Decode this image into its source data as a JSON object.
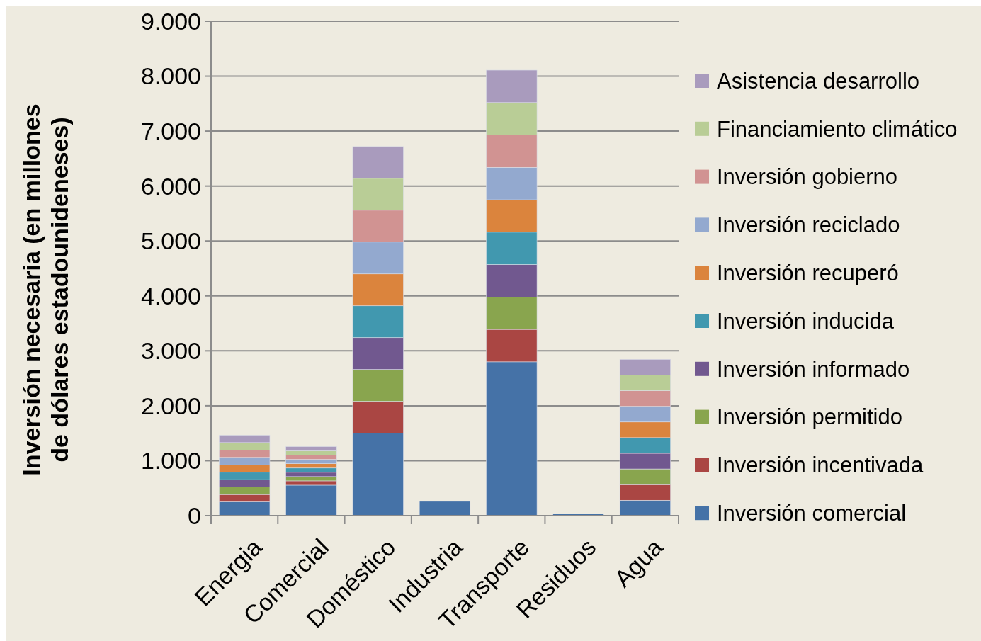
{
  "chart_data": {
    "type": "bar",
    "stacked": true,
    "ylabel": "Inversión necesaria (en millones de dólares estadounideneses)",
    "categories": [
      "Energia",
      "Comercial",
      "Doméstico",
      "Industria",
      "Transporte",
      "Residuos",
      "Agua"
    ],
    "series": [
      {
        "name": "Inversión comercial",
        "color": "#4572a7",
        "values": [
          250,
          555,
          1500,
          260,
          2800,
          30,
          280
        ]
      },
      {
        "name": "Inversión incentivada",
        "color": "#aa4643",
        "values": [
          135,
          78,
          580,
          0,
          590,
          0,
          285
        ]
      },
      {
        "name": "Inversión permitido",
        "color": "#89a54e",
        "values": [
          135,
          78,
          580,
          0,
          590,
          0,
          285
        ]
      },
      {
        "name": "Inversión informado",
        "color": "#71588f",
        "values": [
          135,
          78,
          580,
          0,
          590,
          0,
          285
        ]
      },
      {
        "name": "Inversión inducida",
        "color": "#4198af",
        "values": [
          135,
          78,
          580,
          0,
          590,
          0,
          285
        ]
      },
      {
        "name": "Inversión recuperó",
        "color": "#db843d",
        "values": [
          135,
          78,
          580,
          0,
          590,
          0,
          285
        ]
      },
      {
        "name": "Inversión reciclado",
        "color": "#93a9cf",
        "values": [
          135,
          78,
          580,
          0,
          590,
          0,
          285
        ]
      },
      {
        "name": "Inversión gobierno",
        "color": "#d19392",
        "values": [
          135,
          78,
          580,
          0,
          590,
          0,
          285
        ]
      },
      {
        "name": "Financiamiento climático",
        "color": "#b9cd96",
        "values": [
          135,
          78,
          580,
          0,
          590,
          0,
          285
        ]
      },
      {
        "name": "Asistencia desarrollo",
        "color": "#a99bbd",
        "values": [
          135,
          78,
          580,
          0,
          590,
          0,
          285
        ]
      }
    ],
    "ylim": [
      0,
      9000
    ],
    "yticks": [
      0,
      {
        "value": 1000,
        "label": "1.000"
      },
      {
        "value": 2000,
        "label": "2.000"
      },
      {
        "value": 3000,
        "label": "3.000"
      },
      {
        "value": 4000,
        "label": "4.000"
      },
      {
        "value": 5000,
        "label": "5.000"
      },
      {
        "value": 6000,
        "label": "6.000"
      },
      {
        "value": 7000,
        "label": "7.000"
      },
      {
        "value": 8000,
        "label": "8.000"
      },
      {
        "value": 9000,
        "label": "9.000"
      }
    ],
    "grid": "y",
    "legend": "right"
  }
}
